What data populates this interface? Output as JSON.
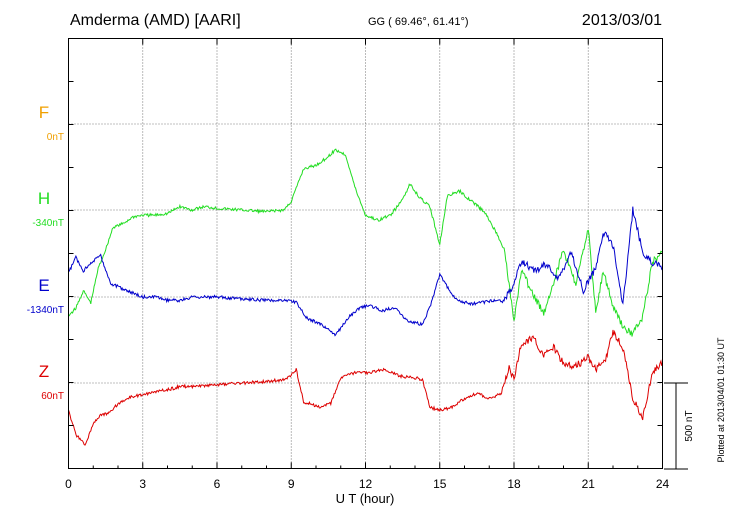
{
  "header": {
    "station": "Amderma (AMD)  [AARI]",
    "coords": "GG ( 69.46°,  61.41°)",
    "date": "2013/03/01"
  },
  "plotted_note": "Plotted at 2013/04/01 01:30 UT",
  "scale_label": "500 nT",
  "colors": {
    "F": "#f0a000",
    "H": "#22dd22",
    "E": "#0000cc",
    "Z": "#dd0000",
    "axis": "#000000"
  },
  "chart_data": {
    "type": "line",
    "xlabel": "U T (hour)",
    "xlim": [
      0,
      24
    ],
    "x_ticks": [
      "0",
      "3",
      "6",
      "9",
      "12",
      "15",
      "18",
      "21",
      "24"
    ],
    "scale_nt": 500,
    "series": [
      {
        "name": "F",
        "base": "0nT",
        "values": []
      },
      {
        "name": "H",
        "base": "-340nT",
        "values": [
          [
            0,
            -615
          ],
          [
            0.3,
            -570
          ],
          [
            0.6,
            -470
          ],
          [
            0.9,
            -540
          ],
          [
            1.2,
            -340
          ],
          [
            1.5,
            -230
          ],
          [
            1.8,
            -100
          ],
          [
            2.2,
            -80
          ],
          [
            2.6,
            -40
          ],
          [
            3,
            -30
          ],
          [
            3.5,
            -30
          ],
          [
            4,
            -20
          ],
          [
            4.5,
            20
          ],
          [
            5,
            0
          ],
          [
            5.5,
            20
          ],
          [
            6,
            10
          ],
          [
            7,
            0
          ],
          [
            8,
            -10
          ],
          [
            8.7,
            0
          ],
          [
            9,
            50
          ],
          [
            9.5,
            240
          ],
          [
            10,
            260
          ],
          [
            10.4,
            300
          ],
          [
            10.8,
            350
          ],
          [
            11.2,
            320
          ],
          [
            11.6,
            120
          ],
          [
            12,
            -30
          ],
          [
            12.5,
            -60
          ],
          [
            13,
            -30
          ],
          [
            13.4,
            40
          ],
          [
            13.8,
            150
          ],
          [
            14.2,
            70
          ],
          [
            14.6,
            20
          ],
          [
            15,
            -200
          ],
          [
            15.3,
            80
          ],
          [
            15.8,
            110
          ],
          [
            16.3,
            50
          ],
          [
            16.8,
            -10
          ],
          [
            17.2,
            -110
          ],
          [
            17.6,
            -220
          ],
          [
            18,
            -650
          ],
          [
            18.3,
            -350
          ],
          [
            18.8,
            -500
          ],
          [
            19.2,
            -600
          ],
          [
            19.6,
            -420
          ],
          [
            20,
            -230
          ],
          [
            20.5,
            -440
          ],
          [
            21,
            -100
          ],
          [
            21.3,
            -600
          ],
          [
            21.6,
            -350
          ],
          [
            22,
            -560
          ],
          [
            22.4,
            -680
          ],
          [
            22.8,
            -720
          ],
          [
            23.2,
            -620
          ],
          [
            23.6,
            -300
          ],
          [
            24,
            -250
          ]
        ]
      },
      {
        "name": "E",
        "base": "-1340nT",
        "values": [
          [
            0,
            140
          ],
          [
            0.3,
            230
          ],
          [
            0.6,
            150
          ],
          [
            0.9,
            200
          ],
          [
            1.3,
            240
          ],
          [
            1.7,
            80
          ],
          [
            2,
            60
          ],
          [
            2.5,
            30
          ],
          [
            3,
            0
          ],
          [
            3.5,
            0
          ],
          [
            4,
            -20
          ],
          [
            4.5,
            -20
          ],
          [
            5,
            0
          ],
          [
            5.5,
            0
          ],
          [
            6,
            0
          ],
          [
            7,
            -10
          ],
          [
            8,
            -20
          ],
          [
            8.8,
            -20
          ],
          [
            9.2,
            -30
          ],
          [
            9.6,
            -120
          ],
          [
            10.2,
            -160
          ],
          [
            10.8,
            -220
          ],
          [
            11.3,
            -120
          ],
          [
            11.8,
            -60
          ],
          [
            12.2,
            -50
          ],
          [
            12.7,
            -80
          ],
          [
            13.2,
            -60
          ],
          [
            13.7,
            -140
          ],
          [
            14.3,
            -160
          ],
          [
            14.6,
            -60
          ],
          [
            15,
            130
          ],
          [
            15.3,
            60
          ],
          [
            15.7,
            -20
          ],
          [
            16.3,
            -40
          ],
          [
            16.8,
            -30
          ],
          [
            17.2,
            -20
          ],
          [
            17.6,
            -20
          ],
          [
            18,
            80
          ],
          [
            18.3,
            210
          ],
          [
            18.8,
            150
          ],
          [
            19.3,
            190
          ],
          [
            19.8,
            100
          ],
          [
            20.3,
            260
          ],
          [
            20.8,
            40
          ],
          [
            21.3,
            170
          ],
          [
            21.6,
            380
          ],
          [
            22,
            300
          ],
          [
            22.4,
            -50
          ],
          [
            22.8,
            510
          ],
          [
            23.2,
            260
          ],
          [
            23.6,
            200
          ],
          [
            24,
            170
          ]
        ]
      },
      {
        "name": "Z",
        "base": "60nT",
        "values": [
          [
            0,
            -160
          ],
          [
            0.3,
            -300
          ],
          [
            0.7,
            -360
          ],
          [
            1,
            -230
          ],
          [
            1.3,
            -190
          ],
          [
            1.7,
            -170
          ],
          [
            2,
            -120
          ],
          [
            2.5,
            -80
          ],
          [
            3,
            -70
          ],
          [
            3.5,
            -50
          ],
          [
            4,
            -40
          ],
          [
            4.5,
            -20
          ],
          [
            5,
            -20
          ],
          [
            6,
            -10
          ],
          [
            7,
            0
          ],
          [
            8,
            10
          ],
          [
            8.8,
            20
          ],
          [
            9.2,
            80
          ],
          [
            9.5,
            -110
          ],
          [
            10.2,
            -140
          ],
          [
            10.6,
            -120
          ],
          [
            11,
            30
          ],
          [
            11.6,
            60
          ],
          [
            12.2,
            60
          ],
          [
            12.8,
            80
          ],
          [
            13.4,
            40
          ],
          [
            14,
            30
          ],
          [
            14.3,
            20
          ],
          [
            14.6,
            -140
          ],
          [
            15,
            -160
          ],
          [
            15.5,
            -140
          ],
          [
            16,
            -90
          ],
          [
            16.5,
            -60
          ],
          [
            17,
            -90
          ],
          [
            17.5,
            -60
          ],
          [
            17.8,
            90
          ],
          [
            18,
            20
          ],
          [
            18.3,
            230
          ],
          [
            18.8,
            260
          ],
          [
            19.2,
            160
          ],
          [
            19.6,
            210
          ],
          [
            20,
            110
          ],
          [
            20.5,
            100
          ],
          [
            21,
            150
          ],
          [
            21.3,
            80
          ],
          [
            21.7,
            130
          ],
          [
            22,
            300
          ],
          [
            22.4,
            200
          ],
          [
            22.8,
            -90
          ],
          [
            23.2,
            -200
          ],
          [
            23.6,
            60
          ],
          [
            24,
            120
          ]
        ]
      }
    ]
  }
}
